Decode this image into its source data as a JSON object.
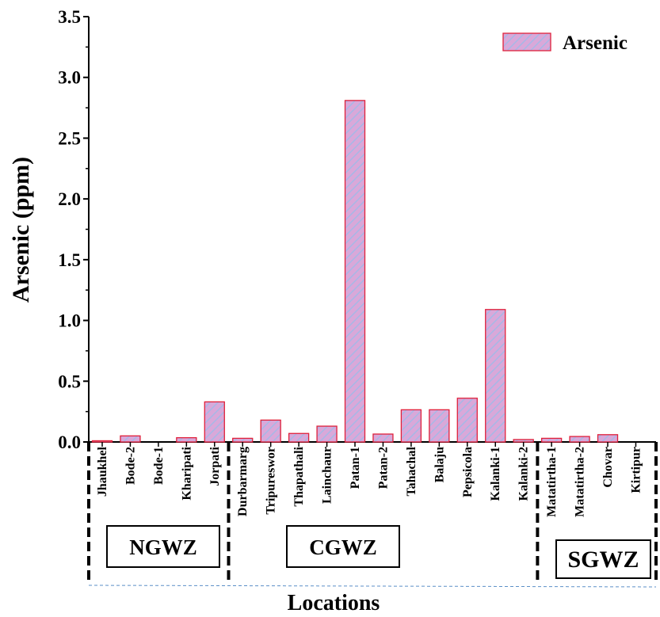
{
  "chart_data": {
    "type": "bar",
    "xlabel": "Locations",
    "ylabel": "Arsenic (ppm)",
    "ylim": [
      0,
      3.5
    ],
    "yticks": [
      "0.0",
      "0.5",
      "1.0",
      "1.5",
      "2.0",
      "2.5",
      "3.0",
      "3.5"
    ],
    "legend": {
      "label": "Arsenic",
      "position": "top-right"
    },
    "categories": [
      "Jhaukhel",
      "Bode-2",
      "Bode-1",
      "Kharipati",
      "Jorpati",
      "Durbarmarg",
      "Tripureswor",
      "Thapathali",
      "Lainchaur",
      "Patan-1",
      "Patan-2",
      "Tahachal",
      "Balaju",
      "Pepsicola",
      "Kalanki-1",
      "Kalanki-2",
      "Matatirtha-1",
      "Matatirtha-2",
      "Chovar",
      "Kirtipur"
    ],
    "series": [
      {
        "name": "Arsenic",
        "values": [
          0.01,
          0.05,
          0.0,
          0.035,
          0.33,
          0.03,
          0.18,
          0.07,
          0.13,
          2.81,
          0.065,
          0.265,
          0.265,
          0.36,
          1.09,
          0.02,
          0.03,
          0.045,
          0.06,
          0.0
        ],
        "fill": "#d9a8d9",
        "hatch": "#a6b8e6",
        "edge": "#e0203a"
      }
    ],
    "groups": [
      {
        "label": "NGWZ",
        "from": 0,
        "to": 4
      },
      {
        "label": "CGWZ",
        "from": 5,
        "to": 15
      },
      {
        "label": "SGWZ",
        "from": 16,
        "to": 19
      }
    ]
  }
}
